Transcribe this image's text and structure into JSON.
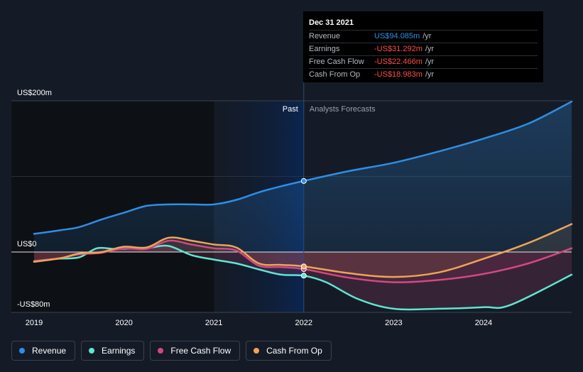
{
  "colors": {
    "background": "#151b26",
    "revenue": "#2f8ee4",
    "earnings": "#5ee6d2",
    "free_cash_flow": "#d1497e",
    "cash_from_op": "#eea459",
    "negative_value": "#ff4d4d"
  },
  "tooltip": {
    "date": "Dec 31 2021",
    "rows": [
      {
        "label": "Revenue",
        "value": "US$94.085m",
        "unit": "/yr",
        "color": "#2f8ee4"
      },
      {
        "label": "Earnings",
        "value": "-US$31.292m",
        "unit": "/yr",
        "color": "#ff4d4d"
      },
      {
        "label": "Free Cash Flow",
        "value": "-US$22.466m",
        "unit": "/yr",
        "color": "#ff4d4d"
      },
      {
        "label": "Cash From Op",
        "value": "-US$18.983m",
        "unit": "/yr",
        "color": "#ff4d4d"
      }
    ]
  },
  "legend": [
    {
      "label": "Revenue",
      "color": "#2f8ee4",
      "icon": "revenue-dot-icon"
    },
    {
      "label": "Earnings",
      "color": "#5ee6d2",
      "icon": "earnings-dot-icon"
    },
    {
      "label": "Free Cash Flow",
      "color": "#d1497e",
      "icon": "free-cash-flow-dot-icon"
    },
    {
      "label": "Cash From Op",
      "color": "#eea459",
      "icon": "cash-from-op-dot-icon"
    }
  ],
  "chart_data": {
    "type": "line",
    "title": "",
    "xlabel": "",
    "ylabel": "",
    "past_label": "Past",
    "forecast_label": "Analysts Forecasts",
    "x_divider": 2022.0,
    "xlim": [
      2018.78,
      2024.98
    ],
    "ylim": [
      -80,
      200
    ],
    "x_ticks": [
      {
        "value": 2019,
        "label": "2019"
      },
      {
        "value": 2020,
        "label": "2020"
      },
      {
        "value": 2021,
        "label": "2021"
      },
      {
        "value": 2022,
        "label": "2022"
      },
      {
        "value": 2023,
        "label": "2023"
      },
      {
        "value": 2024,
        "label": "2024"
      }
    ],
    "y_ticks": [
      {
        "value": 200,
        "label": "US$200m"
      },
      {
        "value": 0,
        "label": "US$0"
      },
      {
        "value": -80,
        "label": "-US$80m"
      }
    ],
    "highlight_x": 2022.0,
    "series": [
      {
        "name": "Revenue",
        "key": "revenue",
        "color": "#2f8ee4",
        "x": [
          2019.0,
          2019.3,
          2019.5,
          2019.75,
          2020.0,
          2020.25,
          2020.5,
          2020.75,
          2021.0,
          2021.25,
          2021.5,
          2021.75,
          2022.0,
          2022.5,
          2023.0,
          2023.5,
          2024.0,
          2024.5,
          2024.98
        ],
        "values": [
          24,
          29,
          33,
          43,
          52,
          61,
          63,
          63,
          63,
          69,
          79,
          87,
          94,
          107,
          118,
          133,
          150,
          170,
          199
        ]
      },
      {
        "name": "Earnings",
        "key": "earnings",
        "color": "#5ee6d2",
        "x": [
          2019.0,
          2019.25,
          2019.5,
          2019.7,
          2019.9,
          2020.1,
          2020.3,
          2020.5,
          2020.75,
          2021.0,
          2021.25,
          2021.5,
          2021.75,
          2022.0,
          2022.25,
          2022.6,
          2023.0,
          2023.5,
          2024.0,
          2024.3,
          2024.98
        ],
        "values": [
          -12,
          -9,
          -7,
          5,
          4,
          5,
          6,
          8,
          -4,
          -10,
          -15,
          -23,
          -30,
          -31.3,
          -40,
          -62,
          -75,
          -75,
          -73,
          -70,
          -30
        ]
      },
      {
        "name": "Free Cash Flow",
        "key": "free_cash_flow",
        "color": "#d1497e",
        "x": [
          2019.0,
          2019.3,
          2019.5,
          2019.75,
          2020.0,
          2020.25,
          2020.5,
          2020.75,
          2021.0,
          2021.25,
          2021.5,
          2021.75,
          2022.0,
          2022.5,
          2023.0,
          2023.5,
          2024.0,
          2024.5,
          2024.98
        ],
        "values": [
          -12,
          -8,
          -3,
          -1,
          5,
          4,
          15,
          10,
          5,
          2,
          -18,
          -20,
          -22.5,
          -34,
          -40,
          -37,
          -29,
          -15,
          5
        ]
      },
      {
        "name": "Cash From Op",
        "key": "cash_from_op",
        "color": "#eea459",
        "x": [
          2019.0,
          2019.3,
          2019.5,
          2019.75,
          2020.0,
          2020.25,
          2020.5,
          2020.75,
          2021.0,
          2021.25,
          2021.5,
          2021.75,
          2022.0,
          2022.5,
          2023.0,
          2023.5,
          2024.0,
          2024.5,
          2024.98
        ],
        "values": [
          -13,
          -8,
          -2,
          0,
          7,
          6,
          19,
          15,
          10,
          6,
          -15,
          -17,
          -19,
          -28,
          -33,
          -27,
          -9,
          12,
          37
        ]
      }
    ]
  }
}
